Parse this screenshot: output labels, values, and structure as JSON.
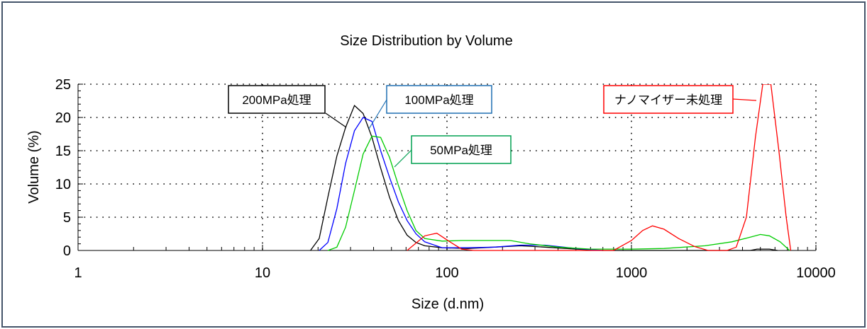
{
  "chart_data": {
    "type": "line",
    "title": "Size Distribution by Volume",
    "xlabel": "Size (d.nm)",
    "ylabel": "Volume (%)",
    "x_scale": "log",
    "xlim": [
      1,
      10000
    ],
    "ylim": [
      0,
      25
    ],
    "x_ticks": [
      "1",
      "10",
      "100",
      "1000",
      "10000"
    ],
    "y_ticks": [
      "0",
      "5",
      "10",
      "15",
      "20",
      "25"
    ],
    "grid": "dotted",
    "series": [
      {
        "name": "200MPa処理",
        "color": "#000000",
        "points": [
          [
            18.2,
            0
          ],
          [
            20.3,
            1.8
          ],
          [
            22.6,
            8.0
          ],
          [
            25.3,
            14.2
          ],
          [
            28.2,
            18.5
          ],
          [
            31.5,
            21.8
          ],
          [
            35.1,
            20.6
          ],
          [
            39.2,
            17.0
          ],
          [
            43.7,
            12.4
          ],
          [
            48.8,
            8.0
          ],
          [
            54.5,
            4.5
          ],
          [
            60.8,
            2.3
          ],
          [
            67.9,
            1.2
          ],
          [
            75.8,
            0.7
          ],
          [
            94.2,
            0.4
          ],
          [
            130.0,
            0.3
          ],
          [
            180.0,
            0.5
          ],
          [
            250.0,
            0.7
          ],
          [
            340.0,
            0.5
          ],
          [
            500.0,
            0.2
          ],
          [
            700.0,
            0
          ],
          [
            4400,
            0
          ],
          [
            4800,
            0.2
          ],
          [
            5600,
            0.2
          ],
          [
            6200,
            0
          ]
        ]
      },
      {
        "name": "100MPa処理",
        "color": "#0000ff",
        "points": [
          [
            20.3,
            0
          ],
          [
            22.6,
            1.2
          ],
          [
            25.3,
            6.3
          ],
          [
            28.2,
            13.1
          ],
          [
            31.5,
            18.0
          ],
          [
            35.1,
            20.0
          ],
          [
            39.2,
            19.4
          ],
          [
            43.7,
            15.0
          ],
          [
            48.8,
            11.0
          ],
          [
            54.5,
            7.3
          ],
          [
            60.8,
            4.5
          ],
          [
            67.9,
            2.5
          ],
          [
            75.8,
            1.3
          ],
          [
            94.2,
            0.4
          ],
          [
            130.0,
            0.4
          ],
          [
            180.0,
            0.5
          ],
          [
            250.0,
            0.8
          ],
          [
            340.0,
            0.8
          ],
          [
            500.0,
            0.3
          ],
          [
            700.0,
            0
          ]
        ]
      },
      {
        "name": "50MPa処理",
        "color": "#00cc00",
        "points": [
          [
            22.6,
            0
          ],
          [
            25.3,
            0.5
          ],
          [
            28.2,
            3.5
          ],
          [
            31.5,
            9.0
          ],
          [
            35.1,
            14.5
          ],
          [
            39.2,
            17.2
          ],
          [
            43.7,
            17.0
          ],
          [
            48.8,
            14.0
          ],
          [
            54.5,
            9.8
          ],
          [
            60.8,
            6.0
          ],
          [
            67.9,
            3.0
          ],
          [
            75.8,
            1.8
          ],
          [
            94.2,
            1.4
          ],
          [
            120.0,
            1.5
          ],
          [
            160.0,
            1.5
          ],
          [
            220.0,
            1.5
          ],
          [
            280.0,
            1.0
          ],
          [
            400.0,
            0.5
          ],
          [
            600.0,
            0.2
          ],
          [
            1000.0,
            0.2
          ],
          [
            1500.0,
            0.3
          ],
          [
            2500.0,
            0.7
          ],
          [
            3500.0,
            1.3
          ],
          [
            4400.0,
            2.0
          ],
          [
            5000.0,
            2.4
          ],
          [
            5600.0,
            2.2
          ],
          [
            6400.0,
            1.3
          ],
          [
            7200.0,
            0
          ]
        ]
      },
      {
        "name": "ナノマイザー未処理",
        "color": "#ff0000",
        "points": [
          [
            60.8,
            0
          ],
          [
            75.8,
            2.2
          ],
          [
            88.0,
            2.6
          ],
          [
            105.0,
            1.2
          ],
          [
            120.0,
            0.2
          ],
          [
            140.0,
            0
          ],
          [
            800.0,
            0
          ],
          [
            1000.0,
            1.5
          ],
          [
            1150.0,
            3.0
          ],
          [
            1300.0,
            3.7
          ],
          [
            1500.0,
            3.2
          ],
          [
            1800.0,
            1.8
          ],
          [
            2200.0,
            0.6
          ],
          [
            2600.0,
            0
          ],
          [
            3300.0,
            0
          ],
          [
            3700.0,
            0.5
          ],
          [
            4200.0,
            5.0
          ],
          [
            4700.0,
            17.0
          ],
          [
            5150.0,
            25.0
          ],
          [
            5700.0,
            25.0
          ],
          [
            6300.0,
            15.0
          ],
          [
            6900.0,
            5.0
          ],
          [
            7300.0,
            0
          ]
        ]
      }
    ],
    "annotations": [
      {
        "text": "200MPa処理",
        "target": "200MPa処理"
      },
      {
        "text": "100MPa処理",
        "target": "100MPa処理"
      },
      {
        "text": "50MPa処理",
        "target": "50MPa処理"
      },
      {
        "text": "ナノマイザー未処理",
        "target": "ナノマイザー未処理"
      }
    ]
  }
}
